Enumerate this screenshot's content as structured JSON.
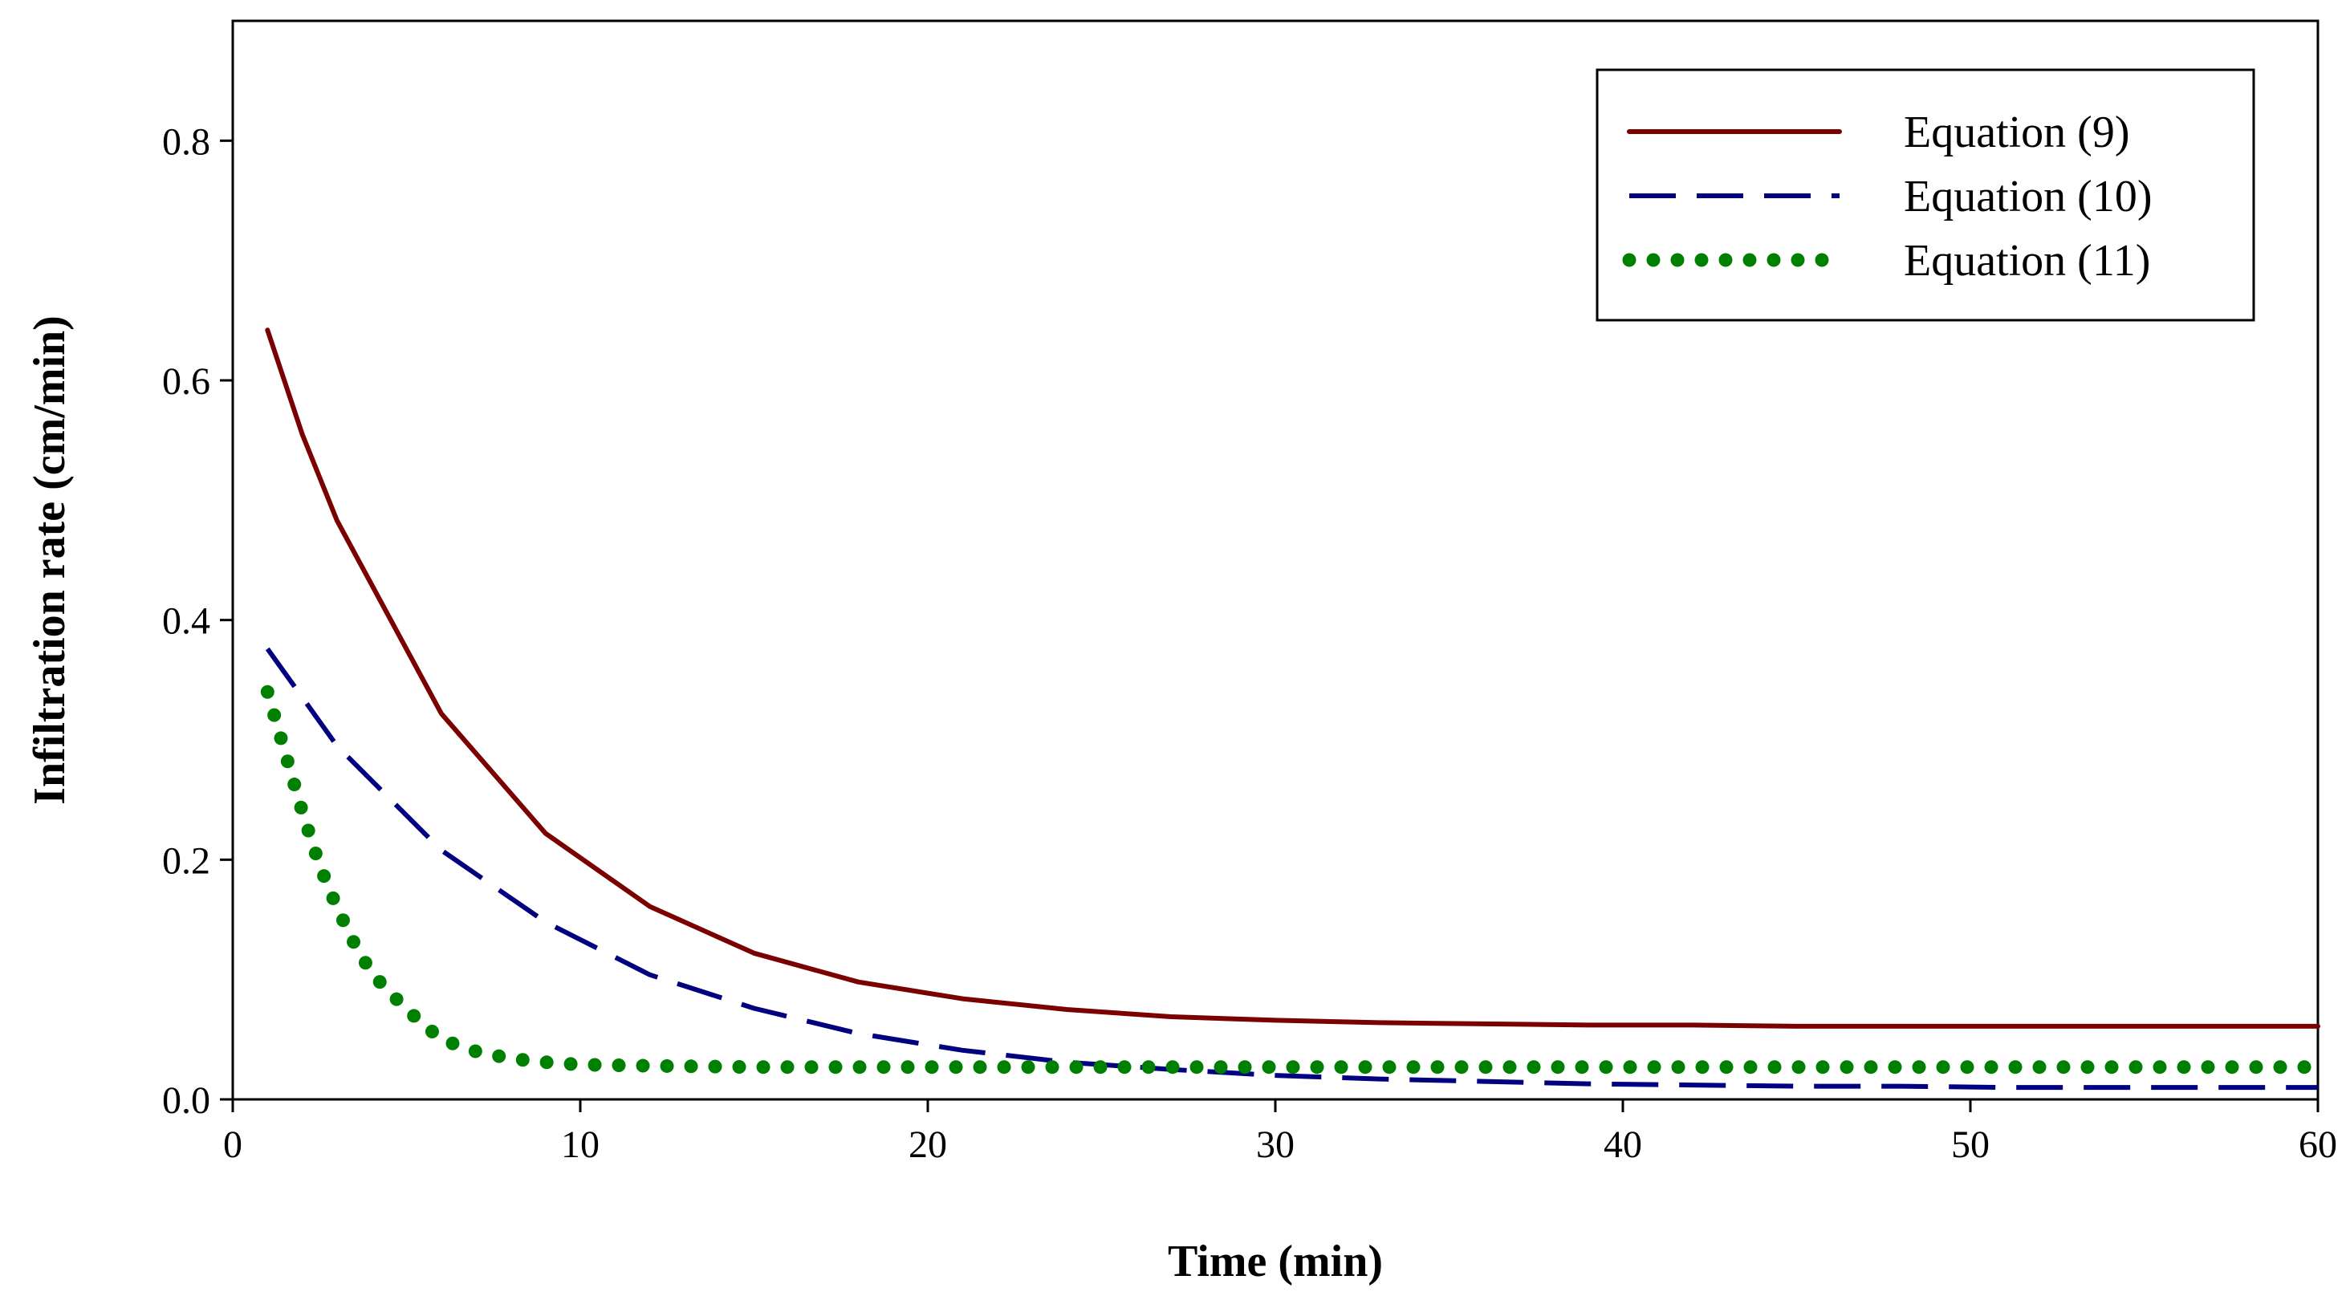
{
  "chart_data": {
    "type": "line",
    "title": "",
    "xlabel": "Time (min)",
    "ylabel": "Infiltration rate (cm/min)",
    "xlim": [
      0,
      60
    ],
    "ylim": [
      0,
      0.9
    ],
    "xticks": [
      0,
      10,
      20,
      30,
      40,
      50,
      60
    ],
    "yticks": [
      0.0,
      0.2,
      0.4,
      0.6,
      0.8
    ],
    "xtick_labels": [
      "0",
      "10",
      "20",
      "30",
      "40",
      "50",
      "60"
    ],
    "ytick_labels": [
      "0.0",
      "0.2",
      "0.4",
      "0.6",
      "0.8"
    ],
    "grid": false,
    "legend_position": "top-right",
    "series": [
      {
        "name": "Equation (9)",
        "color": "#7b0000",
        "style": "solid",
        "x": [
          1,
          2,
          3,
          6,
          9,
          12,
          15,
          18,
          21,
          24,
          27,
          30,
          33,
          36,
          39,
          42,
          45,
          48,
          51,
          54,
          57,
          60
        ],
        "y": [
          0.642,
          0.555,
          0.483,
          0.322,
          0.222,
          0.161,
          0.122,
          0.098,
          0.084,
          0.075,
          0.069,
          0.066,
          0.064,
          0.063,
          0.062,
          0.062,
          0.061,
          0.061,
          0.061,
          0.061,
          0.061,
          0.061
        ]
      },
      {
        "name": "Equation (10)",
        "color": "#000080",
        "style": "dashed",
        "x": [
          1,
          3,
          6,
          9,
          12,
          15,
          18,
          21,
          24,
          27,
          30,
          33,
          36,
          39,
          42,
          45,
          48,
          51,
          54,
          57,
          60
        ],
        "y": [
          0.376,
          0.295,
          0.208,
          0.148,
          0.104,
          0.076,
          0.055,
          0.041,
          0.031,
          0.025,
          0.02,
          0.017,
          0.015,
          0.013,
          0.012,
          0.011,
          0.011,
          0.01,
          0.01,
          0.01,
          0.01
        ]
      },
      {
        "name": "Equation (11)",
        "color": "#008000",
        "style": "dotted",
        "x": [
          1,
          1.5,
          2,
          2.5,
          3,
          3.5,
          4,
          5,
          6,
          7,
          8,
          9,
          10,
          12,
          15,
          18,
          21,
          24,
          27,
          30,
          33,
          36,
          39,
          42,
          45,
          48,
          51,
          54,
          57,
          60
        ],
        "y": [
          0.34,
          0.29,
          0.24,
          0.195,
          0.16,
          0.13,
          0.105,
          0.075,
          0.05,
          0.04,
          0.034,
          0.031,
          0.029,
          0.028,
          0.027,
          0.027,
          0.027,
          0.027,
          0.027,
          0.027,
          0.027,
          0.027,
          0.027,
          0.027,
          0.027,
          0.027,
          0.027,
          0.027,
          0.027,
          0.027
        ]
      }
    ]
  }
}
